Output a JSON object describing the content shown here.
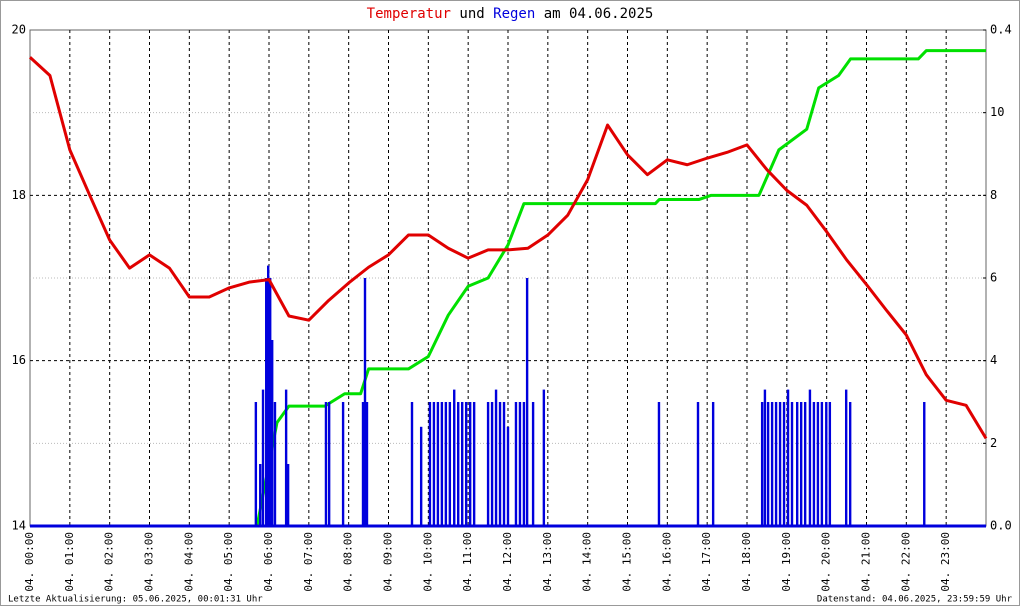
{
  "chart_data": {
    "type": "line",
    "title": [
      "Temperatur",
      "und",
      "Regen",
      "am 04.06.2025"
    ],
    "footer_left": "Letzte Aktualisierung: 05.06.2025, 00:01:31 Uhr",
    "footer_right": "Datenstand: 04.06.2025, 23:59:59 Uhr",
    "xlim": [
      0,
      24
    ],
    "xticks": [
      {
        "value": 0,
        "label": "04. 00:00"
      },
      {
        "value": 1,
        "label": "04. 01:00"
      },
      {
        "value": 2,
        "label": "04. 02:00"
      },
      {
        "value": 3,
        "label": "04. 03:00"
      },
      {
        "value": 4,
        "label": "04. 04:00"
      },
      {
        "value": 5,
        "label": "04. 05:00"
      },
      {
        "value": 6,
        "label": "04. 06:00"
      },
      {
        "value": 7,
        "label": "04. 07:00"
      },
      {
        "value": 8,
        "label": "04. 08:00"
      },
      {
        "value": 9,
        "label": "04. 09:00"
      },
      {
        "value": 10,
        "label": "04. 10:00"
      },
      {
        "value": 11,
        "label": "04. 11:00"
      },
      {
        "value": 12,
        "label": "04. 12:00"
      },
      {
        "value": 13,
        "label": "04. 13:00"
      },
      {
        "value": 14,
        "label": "04. 14:00"
      },
      {
        "value": 15,
        "label": "04. 15:00"
      },
      {
        "value": 16,
        "label": "04. 16:00"
      },
      {
        "value": 17,
        "label": "04. 17:00"
      },
      {
        "value": 18,
        "label": "04. 18:00"
      },
      {
        "value": 19,
        "label": "04. 19:00"
      },
      {
        "value": 20,
        "label": "04. 20:00"
      },
      {
        "value": 21,
        "label": "04. 21:00"
      },
      {
        "value": 22,
        "label": "04. 22:00"
      },
      {
        "value": 23,
        "label": "04. 23:00"
      }
    ],
    "ylim": [
      14,
      20
    ],
    "yticks": [
      14,
      16,
      18,
      20
    ],
    "yminor": [
      15,
      17,
      19
    ],
    "y2lim": [
      0,
      12
    ],
    "y2ticks": [
      2,
      4,
      6,
      8,
      10
    ],
    "y3lim": [
      0,
      0.4
    ],
    "y3ticks": [
      {
        "value": 0,
        "label": "0.0"
      },
      0.4
    ],
    "grid": true,
    "series": [
      {
        "color": "#e00000",
        "type": "line",
        "x": [
          0,
          0.5,
          1,
          1.5,
          2,
          2.5,
          3,
          3.5,
          4,
          4.5,
          5,
          5.5,
          6,
          6.5,
          7,
          7.5,
          8,
          8.5,
          9,
          9.5,
          10,
          10.5,
          11,
          11.5,
          12,
          12.5,
          13,
          13.5,
          14,
          14.5,
          15,
          15.5,
          16,
          16.5,
          17,
          17.5,
          18,
          18.5,
          19,
          19.5,
          20,
          20.5,
          21,
          21.5,
          22,
          22.5,
          23,
          23.5,
          24
        ],
        "values": [
          19.67,
          19.45,
          18.55,
          18.0,
          17.46,
          17.12,
          17.28,
          17.12,
          16.77,
          16.77,
          16.88,
          16.95,
          16.98,
          16.54,
          16.49,
          16.73,
          16.94,
          17.13,
          17.28,
          17.52,
          17.52,
          17.36,
          17.24,
          17.34,
          17.34,
          17.36,
          17.52,
          17.76,
          18.19,
          18.85,
          18.49,
          18.25,
          18.43,
          18.37,
          18.45,
          18.52,
          18.61,
          18.31,
          18.06,
          17.88,
          17.56,
          17.22,
          16.92,
          16.61,
          16.31,
          15.83,
          15.52,
          15.46,
          15.06
        ]
      },
      {
        "color": "#0000dd",
        "type": "bar",
        "axis": "y3",
        "x": [
          5.67,
          5.78,
          5.85,
          5.93,
          5.98,
          6.03,
          6.08,
          6.15,
          6.43,
          6.48,
          7.43,
          7.51,
          7.86,
          8.36,
          8.41,
          8.46,
          9.59,
          9.82,
          10.04,
          10.14,
          10.24,
          10.34,
          10.44,
          10.54,
          10.65,
          10.75,
          10.85,
          10.95,
          11.05,
          11.15,
          11.5,
          11.6,
          11.7,
          11.8,
          11.9,
          12.0,
          12.2,
          12.3,
          12.4,
          12.48,
          12.63,
          12.9,
          15.79,
          16.77,
          17.15,
          18.38,
          18.45,
          18.53,
          18.63,
          18.73,
          18.83,
          18.93,
          19.03,
          19.13,
          19.26,
          19.36,
          19.46,
          19.58,
          19.68,
          19.78,
          19.88,
          19.99,
          20.08,
          20.49,
          20.59,
          22.45
        ],
        "values": [
          0.1,
          0.05,
          0.11,
          0.2,
          0.21,
          0.2,
          0.15,
          0.1,
          0.11,
          0.05,
          0.1,
          0.1,
          0.1,
          0.1,
          0.2,
          0.1,
          0.1,
          0.08,
          0.1,
          0.1,
          0.1,
          0.1,
          0.1,
          0.1,
          0.11,
          0.1,
          0.1,
          0.1,
          0.1,
          0.1,
          0.1,
          0.1,
          0.11,
          0.1,
          0.1,
          0.08,
          0.1,
          0.1,
          0.1,
          0.2,
          0.1,
          0.11,
          0.1,
          0.1,
          0.1,
          0.1,
          0.11,
          0.1,
          0.1,
          0.1,
          0.1,
          0.1,
          0.11,
          0.1,
          0.1,
          0.1,
          0.1,
          0.11,
          0.1,
          0.1,
          0.1,
          0.1,
          0.1,
          0.11,
          0.1,
          0.1
        ]
      },
      {
        "color": "#00e000",
        "type": "line",
        "axis": "y2",
        "x": [
          0,
          5.7,
          6.2,
          6.5,
          7.4,
          7.9,
          8.3,
          8.5,
          9.5,
          10.0,
          10.5,
          11.0,
          11.5,
          12.0,
          12.4,
          12.9,
          15.7,
          15.8,
          16.8,
          17.1,
          18.3,
          18.8,
          19.5,
          19.8,
          20.3,
          20.6,
          22.3,
          22.5,
          24
        ],
        "values": [
          0,
          0,
          2.5,
          2.9,
          2.9,
          3.2,
          3.2,
          3.8,
          3.8,
          4.1,
          5.1,
          5.8,
          6.0,
          6.8,
          7.8,
          7.8,
          7.8,
          7.9,
          7.9,
          8.0,
          8.0,
          9.1,
          9.6,
          10.6,
          10.9,
          11.3,
          11.3,
          11.5,
          11.5
        ]
      }
    ]
  }
}
